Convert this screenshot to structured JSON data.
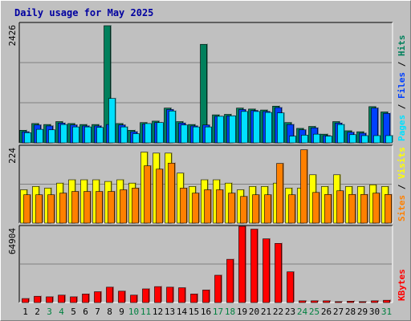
{
  "chart_data": {
    "type": "bar",
    "title": "Daily usage for May 2025",
    "days": [
      "1",
      "2",
      "3",
      "4",
      "5",
      "6",
      "7",
      "8",
      "9",
      "10",
      "11",
      "12",
      "13",
      "14",
      "15",
      "16",
      "17",
      "18",
      "19",
      "20",
      "21",
      "22",
      "23",
      "24",
      "25",
      "26",
      "27",
      "28",
      "29",
      "30",
      "31"
    ],
    "weekend_days": [
      "3",
      "4",
      "10",
      "11",
      "17",
      "18",
      "24",
      "25",
      "31"
    ],
    "colors": {
      "hits": "#00805c",
      "files": "#0040ff",
      "pages": "#00e0ff",
      "visits": "#ffff00",
      "sites": "#ff8000",
      "kbytes": "#ff0000",
      "title": "#0000a0",
      "weekend": "#008040",
      "weekday": "#000000"
    },
    "panels": [
      {
        "name": "hits-files-pages",
        "ymax": 2426,
        "tick_label": "2426",
        "legend": [
          {
            "label": "Hits",
            "color": "#00805c"
          },
          {
            "label": "Files",
            "color": "#0040ff"
          },
          {
            "label": "Pages",
            "color": "#00e0ff"
          }
        ],
        "series": [
          {
            "name": "Hits",
            "values": [
              260,
              400,
              380,
              440,
              400,
              380,
              380,
              2426,
              400,
              260,
              420,
              450,
              720,
              440,
              380,
              2040,
              580,
              590,
              720,
              700,
              680,
              760,
              420,
              300,
              340,
              180,
              440,
              250,
              230,
              750,
              640
            ]
          },
          {
            "name": "Files",
            "values": [
              230,
              370,
              350,
              410,
              370,
              350,
              350,
              380,
              370,
              230,
              390,
              420,
              690,
              410,
              350,
              370,
              550,
              560,
              690,
              670,
              650,
              730,
              380,
              270,
              310,
              150,
              410,
              220,
              200,
              720,
              610
            ]
          },
          {
            "name": "Pages",
            "values": [
              210,
              280,
              270,
              380,
              330,
              330,
              320,
              920,
              330,
              190,
              400,
              420,
              660,
              370,
              330,
              330,
              550,
              560,
              650,
              650,
              630,
              620,
              140,
              160,
              180,
              140,
              380,
              170,
              150,
              150,
              150
            ]
          }
        ]
      },
      {
        "name": "visits-sites",
        "ymax": 224,
        "tick_label": "224",
        "legend": [
          {
            "label": "Visits",
            "color": "#ffff00"
          },
          {
            "label": "Sites",
            "color": "#ff8000"
          }
        ],
        "series": [
          {
            "name": "Visits",
            "values": [
              100,
              110,
              105,
              120,
              130,
              130,
              130,
              125,
              130,
              120,
              213,
              210,
              210,
              150,
              110,
              130,
              130,
              120,
              100,
              110,
              110,
              120,
              105,
              105,
              145,
              110,
              145,
              110,
              110,
              115,
              110
            ]
          },
          {
            "name": "Sites",
            "values": [
              85,
              85,
              85,
              90,
              95,
              95,
              95,
              95,
              100,
              105,
              172,
              162,
              180,
              105,
              90,
              100,
              100,
              90,
              80,
              85,
              85,
              179,
              85,
              220,
              92,
              86,
              97,
              86,
              86,
              90,
              86
            ]
          }
        ]
      },
      {
        "name": "kbytes",
        "ymax": 64904,
        "tick_label": "64904",
        "legend": [
          {
            "label": "KBytes",
            "color": "#ff0000"
          }
        ],
        "series": [
          {
            "name": "KBytes",
            "values": [
              3500,
              5500,
              5000,
              6500,
              5000,
              7500,
              9500,
              13500,
              10000,
              6500,
              12000,
              14000,
              13500,
              13000,
              7500,
              11000,
              24000,
              38000,
              67000,
              64500,
              56000,
              52000,
              27000,
              1500,
              1500,
              1500,
              800,
              1200,
              800,
              1500,
              2000
            ]
          }
        ]
      }
    ]
  }
}
